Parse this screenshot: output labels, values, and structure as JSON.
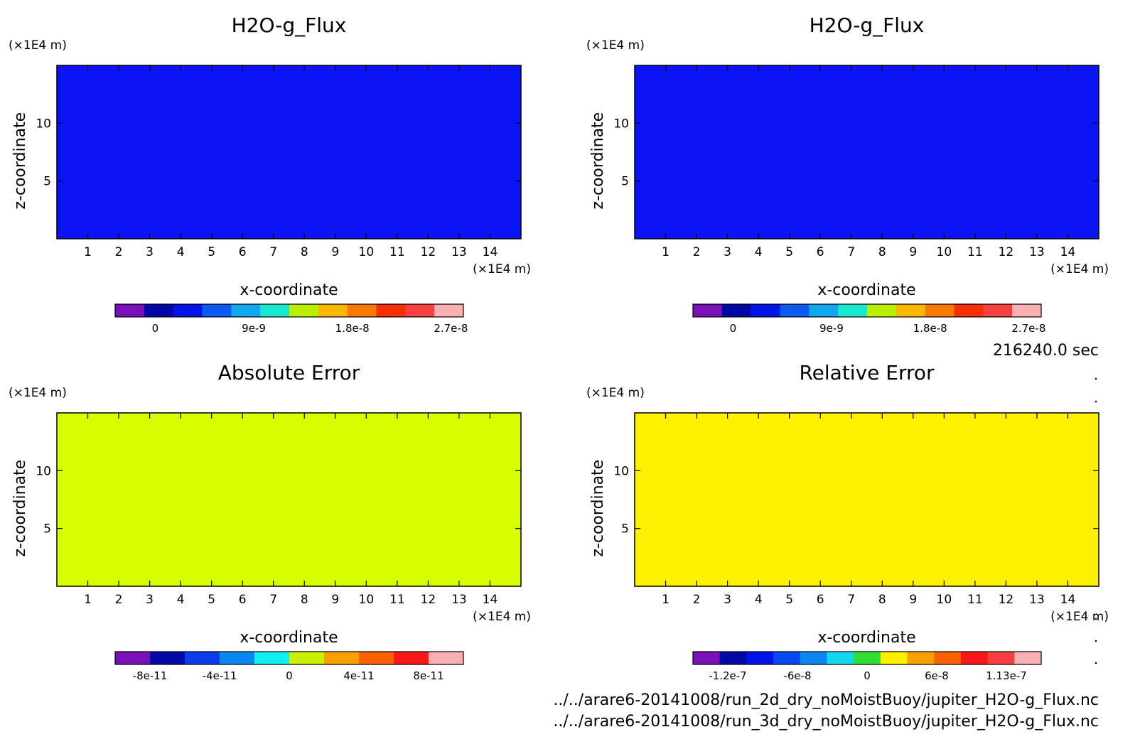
{
  "charts": [
    {
      "title": "H2O-g_Flux",
      "xlabel": "x-coordinate",
      "ylabel": "z-coordinate",
      "x_unit": "(×1E4 m)",
      "y_unit": "(×1E4 m)",
      "x_ticks": [
        "1",
        "2",
        "3",
        "4",
        "5",
        "6",
        "7",
        "8",
        "9",
        "10",
        "11",
        "12",
        "13",
        "14"
      ],
      "y_ticks": [
        "5",
        "10"
      ],
      "fill_color": "#0a14f5",
      "colorbar": {
        "colors": [
          "#7a10b8",
          "#0008a8",
          "#0014e8",
          "#0a5cf0",
          "#12a8f0",
          "#18e8d0",
          "#b8f000",
          "#f8b800",
          "#f87800",
          "#f83000",
          "#f84040",
          "#f8b0b0"
        ],
        "labels": [
          "0",
          "9e-9",
          "1.8e-8",
          "2.7e-8"
        ]
      }
    },
    {
      "title": "H2O-g_Flux",
      "xlabel": "x-coordinate",
      "ylabel": "z-coordinate",
      "x_unit": "(×1E4 m)",
      "y_unit": "(×1E4 m)",
      "x_ticks": [
        "1",
        "2",
        "3",
        "4",
        "5",
        "6",
        "7",
        "8",
        "9",
        "10",
        "11",
        "12",
        "13",
        "14"
      ],
      "y_ticks": [
        "5",
        "10"
      ],
      "fill_color": "#0a14f5",
      "colorbar": {
        "colors": [
          "#7a10b8",
          "#0008a8",
          "#0014e8",
          "#0a5cf0",
          "#12a8f0",
          "#18e8d0",
          "#b8f000",
          "#f8b800",
          "#f87800",
          "#f83000",
          "#f84040",
          "#f8b0b0"
        ],
        "labels": [
          "0",
          "9e-9",
          "1.8e-8",
          "2.7e-8"
        ]
      }
    },
    {
      "title": "Absolute Error",
      "xlabel": "x-coordinate",
      "ylabel": "z-coordinate",
      "x_unit": "(×1E4 m)",
      "y_unit": "(×1E4 m)",
      "x_ticks": [
        "1",
        "2",
        "3",
        "4",
        "5",
        "6",
        "7",
        "8",
        "9",
        "10",
        "11",
        "12",
        "13",
        "14"
      ],
      "y_ticks": [
        "5",
        "10"
      ],
      "fill_color": "#d8ff00",
      "colorbar": {
        "colors": [
          "#7a10b8",
          "#0008a8",
          "#0a3ce8",
          "#0a88f0",
          "#12f0f0",
          "#c8f000",
          "#f8a000",
          "#f86000",
          "#f81818",
          "#f8b0b0"
        ],
        "labels": [
          "-8e-11",
          "-4e-11",
          "0",
          "4e-11",
          "8e-11"
        ]
      }
    },
    {
      "title": "Relative Error",
      "xlabel": "x-coordinate",
      "ylabel": "z-coordinate",
      "x_unit": "(×1E4 m)",
      "y_unit": "(×1E4 m)",
      "x_ticks": [
        "1",
        "2",
        "3",
        "4",
        "5",
        "6",
        "7",
        "8",
        "9",
        "10",
        "11",
        "12",
        "13",
        "14"
      ],
      "y_ticks": [
        "5",
        "10"
      ],
      "fill_color": "#fff200",
      "colorbar": {
        "colors": [
          "#7a10b8",
          "#0008a8",
          "#0014e8",
          "#0a48f0",
          "#0a88f0",
          "#12d8f0",
          "#30e030",
          "#fff000",
          "#f8a000",
          "#f86000",
          "#f81818",
          "#f84040",
          "#f8b0b0"
        ],
        "labels": [
          "-1.2e-7",
          "-6e-8",
          "0",
          "6e-8",
          "1.13e-7"
        ]
      }
    }
  ],
  "time_label": "216240.0 sec",
  "files": [
    "../../arare6-20141008/run_2d_dry_noMoistBuoy/jupiter_H2O-g_Flux.nc",
    "../../arare6-20141008/run_3d_dry_noMoistBuoy/jupiter_H2O-g_Flux.nc"
  ],
  "chart_data": [
    {
      "type": "heatmap",
      "title": "H2O-g_Flux",
      "xlabel": "x-coordinate",
      "ylabel": "z-coordinate",
      "x_unit": "x1E4 m",
      "y_unit": "x1E4 m",
      "xlim": [
        0,
        15
      ],
      "ylim": [
        0,
        15
      ],
      "x_ticks": [
        1,
        2,
        3,
        4,
        5,
        6,
        7,
        8,
        9,
        10,
        11,
        12,
        13,
        14
      ],
      "y_ticks": [
        5,
        10
      ],
      "colorbar_labels": [
        "0",
        "9e-9",
        "1.8e-8",
        "2.7e-8"
      ],
      "field_value": 0
    },
    {
      "type": "heatmap",
      "title": "H2O-g_Flux",
      "xlabel": "x-coordinate",
      "ylabel": "z-coordinate",
      "x_unit": "x1E4 m",
      "y_unit": "x1E4 m",
      "xlim": [
        0,
        15
      ],
      "ylim": [
        0,
        15
      ],
      "x_ticks": [
        1,
        2,
        3,
        4,
        5,
        6,
        7,
        8,
        9,
        10,
        11,
        12,
        13,
        14
      ],
      "y_ticks": [
        5,
        10
      ],
      "colorbar_labels": [
        "0",
        "9e-9",
        "1.8e-8",
        "2.7e-8"
      ],
      "field_value": 0
    },
    {
      "type": "heatmap",
      "title": "Absolute Error",
      "xlabel": "x-coordinate",
      "ylabel": "z-coordinate",
      "x_unit": "x1E4 m",
      "y_unit": "x1E4 m",
      "xlim": [
        0,
        15
      ],
      "ylim": [
        0,
        15
      ],
      "x_ticks": [
        1,
        2,
        3,
        4,
        5,
        6,
        7,
        8,
        9,
        10,
        11,
        12,
        13,
        14
      ],
      "y_ticks": [
        5,
        10
      ],
      "colorbar_labels": [
        "-8e-11",
        "-4e-11",
        "0",
        "4e-11",
        "8e-11"
      ],
      "field_value": 0
    },
    {
      "type": "heatmap",
      "title": "Relative Error",
      "xlabel": "x-coordinate",
      "ylabel": "z-coordinate",
      "x_unit": "x1E4 m",
      "y_unit": "x1E4 m",
      "xlim": [
        0,
        15
      ],
      "ylim": [
        0,
        15
      ],
      "x_ticks": [
        1,
        2,
        3,
        4,
        5,
        6,
        7,
        8,
        9,
        10,
        11,
        12,
        13,
        14
      ],
      "y_ticks": [
        5,
        10
      ],
      "colorbar_labels": [
        "-1.2e-7",
        "-6e-8",
        "0",
        "6e-8",
        "1.13e-7"
      ],
      "field_value": 0
    }
  ]
}
